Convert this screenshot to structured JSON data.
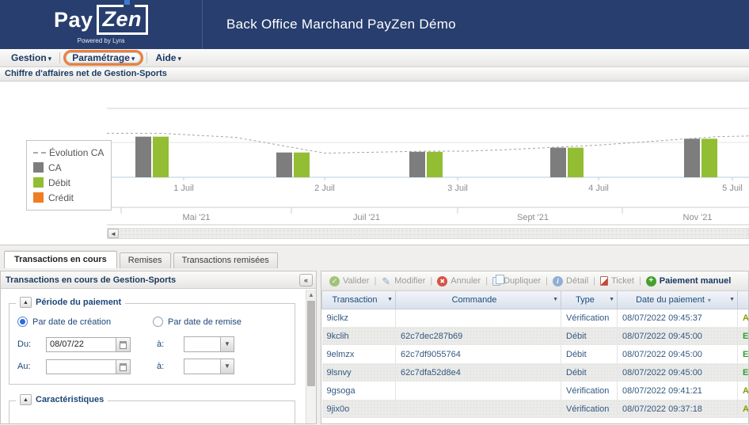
{
  "header": {
    "logo_pay": "Pay",
    "logo_zen": "Zen",
    "logo_tagline": "Powered by Lyra",
    "title": "Back Office Marchand PayZen Démo"
  },
  "menu": {
    "items": [
      {
        "label": "Gestion",
        "caret": "▾",
        "highlighted": false
      },
      {
        "label": "Paramétrage",
        "caret": "▾",
        "highlighted": true
      },
      {
        "label": "Aide",
        "caret": "▾",
        "highlighted": false
      }
    ],
    "annotation_color": "#e9813d"
  },
  "chart_section": {
    "title": "Chiffre d'affaires net de Gestion-Sports"
  },
  "chart_data": {
    "type": "bar",
    "title": "Chiffre d'affaires net de Gestion-Sports",
    "categories": [
      "1 Juil",
      "2 Juil",
      "3 Juil",
      "4 Juil",
      "5 Juil"
    ],
    "series": [
      {
        "name": "CA",
        "color": "#7d7d7d",
        "values": [
          59,
          36,
          37,
          43,
          56
        ]
      },
      {
        "name": "Débit",
        "color": "#93bd33",
        "values": [
          59,
          36,
          37,
          43,
          56
        ]
      },
      {
        "name": "Crédit",
        "color": "#ee7d23",
        "values": [
          0,
          0,
          0,
          0,
          0
        ]
      }
    ],
    "line_series": {
      "name": "Évolution CA",
      "color": "#a3a3a3",
      "dashed": true,
      "points": [
        [
          0.0,
          64
        ],
        [
          0.08,
          64
        ],
        [
          0.2,
          58
        ],
        [
          0.34,
          35
        ],
        [
          0.5,
          38
        ],
        [
          0.56,
          38
        ],
        [
          0.62,
          40
        ],
        [
          0.77,
          47
        ],
        [
          0.95,
          59
        ],
        [
          1.0,
          60
        ]
      ]
    },
    "values_note": "relative units 0-100, no y-axis tick labels shown",
    "ylim": [
      0,
      100
    ],
    "xlabel": "",
    "ylabel": "",
    "grid": true,
    "legend_position": "left",
    "navigator_labels": [
      "Mai '21",
      "Juil '21",
      "Sept '21",
      "Nov '21"
    ]
  },
  "tabs": [
    {
      "label": "Transactions en cours",
      "active": true
    },
    {
      "label": "Remises",
      "active": false
    },
    {
      "label": "Transactions remisées",
      "active": false
    }
  ],
  "left_panel": {
    "title": "Transactions en cours de Gestion-Sports",
    "collapse_icon": "«",
    "groups": [
      {
        "label": "Période du paiement",
        "toggle_icon": "▲"
      },
      {
        "label": "Caractéristiques",
        "toggle_icon": "▲"
      }
    ],
    "radios": [
      {
        "label": "Par date de création",
        "checked": true
      },
      {
        "label": "Par date de remise",
        "checked": false
      }
    ],
    "fields": {
      "du_label": "Du:",
      "du_value": "08/07/22",
      "a1_label": "à:",
      "a1_value": "",
      "au_label": "Au:",
      "au_value": "",
      "a2_label": "à:",
      "a2_value": ""
    }
  },
  "toolbar": {
    "items": [
      {
        "label": "Valider",
        "icon": "check-circle",
        "enabled": false
      },
      {
        "label": "Modifier",
        "icon": "pencil",
        "enabled": false
      },
      {
        "label": "Annuler",
        "icon": "cancel-circle",
        "enabled": false
      },
      {
        "label": "Dupliquer",
        "icon": "copy",
        "enabled": false
      },
      {
        "label": "Détail",
        "icon": "info-circle",
        "enabled": false
      },
      {
        "label": "Ticket",
        "icon": "pdf",
        "enabled": false
      },
      {
        "label": "Paiement manuel",
        "icon": "plus-circle",
        "enabled": true
      }
    ]
  },
  "table": {
    "columns": [
      {
        "label": "Transaction",
        "filter": true,
        "sorted": false
      },
      {
        "label": "Commande",
        "filter": true,
        "sorted": false
      },
      {
        "label": "Type",
        "filter": true,
        "sorted": false
      },
      {
        "label": "Date du paiement",
        "filter": true,
        "sorted": true,
        "sort_caret": "▾"
      }
    ],
    "rows": [
      {
        "transaction": "9iclkz",
        "commande": "",
        "type": "Vérification",
        "date": "08/07/2022 09:45:37",
        "status_letter": "A",
        "status_color": "#8a9b00"
      },
      {
        "transaction": "9kclih",
        "commande": "62c7dec287b69",
        "type": "Débit",
        "date": "08/07/2022 09:45:00",
        "status_letter": "E",
        "status_color": "#2e9e2e"
      },
      {
        "transaction": "9elmzx",
        "commande": "62c7df9055764",
        "type": "Débit",
        "date": "08/07/2022 09:45:00",
        "status_letter": "E",
        "status_color": "#2e9e2e"
      },
      {
        "transaction": "9lsnvy",
        "commande": "62c7dfa52d8e4",
        "type": "Débit",
        "date": "08/07/2022 09:45:00",
        "status_letter": "E",
        "status_color": "#2e9e2e"
      },
      {
        "transaction": "9gsoga",
        "commande": "",
        "type": "Vérification",
        "date": "08/07/2022 09:41:21",
        "status_letter": "A",
        "status_color": "#8a9b00"
      },
      {
        "transaction": "9jix0o",
        "commande": "",
        "type": "Vérification",
        "date": "08/07/2022 09:37:18",
        "status_letter": "A",
        "status_color": "#8a9b00"
      }
    ]
  }
}
